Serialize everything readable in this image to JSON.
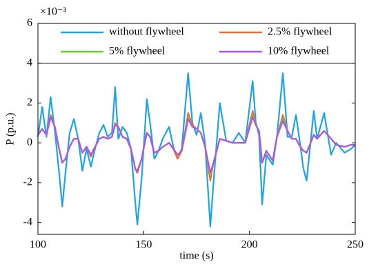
{
  "chart_data": {
    "type": "line",
    "exponent": "×10⁻³",
    "xlabel": "time (s)",
    "ylabel": "P (p.u.)",
    "x": [
      100,
      102,
      104,
      106,
      108,
      110,
      111.5,
      113,
      115,
      117,
      119,
      121,
      123,
      125,
      127,
      129,
      131,
      133,
      135,
      136.5,
      138,
      140,
      142,
      144,
      146,
      147,
      149,
      151.5,
      153,
      155,
      157,
      159,
      162,
      164,
      166,
      168,
      171,
      173,
      175,
      177,
      179,
      181.5,
      183,
      186,
      189,
      192,
      195,
      198,
      201.5,
      203,
      204.5,
      206,
      208,
      211,
      213,
      215.8,
      218,
      220,
      222,
      224,
      225.5,
      227,
      230.4,
      232,
      235.3,
      238.6,
      241,
      245,
      248,
      250
    ],
    "series": [
      {
        "name": "without flywheel",
        "color": "#1ca3ec",
        "values": [
          0.3,
          1.8,
          0.3,
          2.3,
          0.6,
          -1.5,
          -3.2,
          -1.5,
          0.5,
          1.2,
          0.2,
          -1.4,
          -0.3,
          -1.2,
          -0.3,
          0.5,
          0.9,
          0.3,
          0.5,
          2.8,
          0.2,
          0.8,
          0.5,
          -0.3,
          -3.0,
          -4.1,
          -1.8,
          2.2,
          1.0,
          -0.8,
          -0.4,
          0.2,
          0.8,
          -0.2,
          -0.8,
          -0.3,
          3.5,
          1.0,
          0.4,
          1.5,
          0.0,
          -4.2,
          -2.0,
          2.0,
          0.1,
          0.0,
          0.5,
          0.0,
          3.1,
          1.0,
          0.4,
          -3.1,
          -0.6,
          -1.1,
          0.3,
          3.5,
          0.3,
          0.3,
          1.4,
          -0.1,
          -1.3,
          -1.9,
          1.6,
          0.2,
          1.5,
          -0.6,
          0.0,
          -0.5,
          -0.3,
          -0.1
        ]
      },
      {
        "name": "2.5% flywheel",
        "color": "#f26b34",
        "values": [
          0.4,
          0.7,
          0.4,
          1.4,
          0.8,
          -0.3,
          -1.0,
          -0.8,
          -0.2,
          0.2,
          0.2,
          -0.5,
          -0.2,
          -0.7,
          -0.2,
          0.2,
          0.3,
          0.2,
          0.3,
          1.0,
          0.8,
          0.3,
          0.2,
          -0.3,
          -1.3,
          -1.4,
          -0.8,
          0.5,
          0.3,
          -0.5,
          -0.4,
          -0.2,
          0.0,
          -0.3,
          -0.8,
          -0.4,
          1.5,
          0.9,
          0.7,
          0.5,
          -0.2,
          -1.9,
          -1.0,
          0.2,
          0.1,
          0.0,
          0.0,
          0.0,
          1.6,
          0.9,
          0.6,
          -1.0,
          -0.4,
          -0.9,
          0.3,
          1.4,
          0.6,
          0.2,
          0.2,
          -0.2,
          -0.4,
          -0.5,
          0.4,
          0.2,
          0.6,
          0.2,
          -0.1,
          -0.2,
          -0.1,
          -0.1
        ]
      },
      {
        "name": "5% flywheel",
        "color": "#67d12a",
        "values": [
          0.4,
          0.7,
          0.4,
          1.3,
          0.8,
          -0.3,
          -1.0,
          -0.8,
          -0.2,
          0.2,
          0.2,
          -0.5,
          -0.2,
          -0.6,
          -0.2,
          0.2,
          0.3,
          0.2,
          0.3,
          0.9,
          0.8,
          0.3,
          0.2,
          -0.3,
          -1.3,
          -1.5,
          -0.8,
          0.5,
          0.3,
          -0.5,
          -0.4,
          -0.2,
          0.0,
          -0.3,
          -0.6,
          -0.4,
          1.3,
          0.8,
          0.7,
          0.5,
          -0.2,
          -1.6,
          -1.0,
          0.2,
          0.1,
          0.0,
          0.0,
          0.0,
          1.4,
          0.9,
          0.6,
          -1.0,
          -0.4,
          -0.9,
          0.3,
          1.2,
          0.6,
          0.2,
          0.2,
          -0.2,
          -0.4,
          -0.5,
          0.4,
          0.2,
          0.6,
          0.2,
          -0.1,
          -0.2,
          -0.1,
          -0.1
        ]
      },
      {
        "name": "10% flywheel",
        "color": "#b052ec",
        "values": [
          0.4,
          0.7,
          0.4,
          1.3,
          0.8,
          -0.3,
          -1.0,
          -0.8,
          -0.2,
          0.2,
          0.2,
          -0.5,
          -0.2,
          -0.6,
          -0.2,
          0.2,
          0.3,
          0.2,
          0.3,
          0.9,
          0.8,
          0.3,
          0.2,
          -0.3,
          -1.3,
          -1.5,
          -0.8,
          0.5,
          0.3,
          -0.5,
          -0.4,
          -0.2,
          0.0,
          -0.3,
          -0.6,
          -0.4,
          1.2,
          0.8,
          0.7,
          0.5,
          -0.2,
          -1.5,
          -1.0,
          0.2,
          0.1,
          0.0,
          0.0,
          0.0,
          1.3,
          0.9,
          0.6,
          -1.0,
          -0.4,
          -0.9,
          0.3,
          1.1,
          0.6,
          0.2,
          0.2,
          -0.2,
          -0.4,
          -0.5,
          0.4,
          0.2,
          0.6,
          0.2,
          -0.1,
          -0.2,
          -0.1,
          -0.1
        ]
      }
    ],
    "xlim": [
      100,
      250
    ],
    "ylim": [
      -4.6,
      6
    ],
    "xticks": [
      100,
      150,
      200,
      250
    ],
    "yticks": [
      -4,
      -2,
      0,
      2,
      4,
      6
    ],
    "grid": false,
    "legend": "top"
  }
}
